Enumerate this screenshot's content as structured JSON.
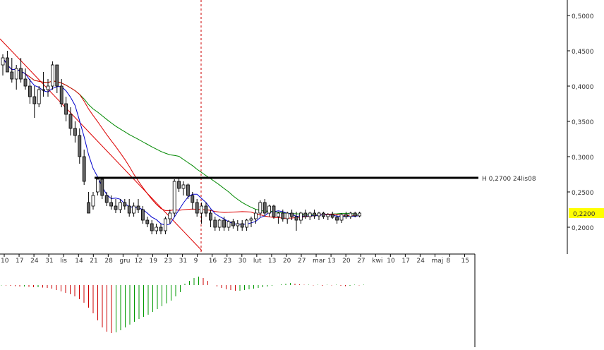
{
  "chart_data": {
    "type": "candlestick",
    "price_axis": {
      "ticks": [
        {
          "value": 0.5,
          "label": "0,5000"
        },
        {
          "value": 0.45,
          "label": "0,4500"
        },
        {
          "value": 0.4,
          "label": "0,4000"
        },
        {
          "value": 0.35,
          "label": "0,3500"
        },
        {
          "value": 0.3,
          "label": "0,3000"
        },
        {
          "value": 0.25,
          "label": "0,2500"
        },
        {
          "value": 0.2,
          "label": "0,2000"
        }
      ],
      "current_price": {
        "value": 0.22,
        "label": "0,2200",
        "color": "#ffff00"
      },
      "range": [
        0.17,
        0.52
      ]
    },
    "date_axis": {
      "labels": [
        "10",
        "17",
        "24",
        "31",
        "lis",
        "14",
        "21",
        "28",
        "gru",
        "12",
        "19",
        "23",
        "31",
        "9",
        "16",
        "23",
        "30",
        "lut",
        "13",
        "20",
        "27",
        "mar",
        "13",
        "20",
        "27",
        "kwi",
        "10",
        "17",
        "24",
        "maj",
        "8",
        "15"
      ]
    },
    "high_line": {
      "value": 0.27,
      "label": "H 0,2700 24lis08",
      "color": "#000000"
    },
    "candles": [
      [
        0.43,
        0.445,
        0.415,
        0.44
      ],
      [
        0.44,
        0.45,
        0.42,
        0.42
      ],
      [
        0.42,
        0.44,
        0.405,
        0.41
      ],
      [
        0.41,
        0.43,
        0.395,
        0.425
      ],
      [
        0.425,
        0.44,
        0.405,
        0.41
      ],
      [
        0.41,
        0.425,
        0.395,
        0.4
      ],
      [
        0.4,
        0.41,
        0.375,
        0.385
      ],
      [
        0.385,
        0.4,
        0.355,
        0.375
      ],
      [
        0.375,
        0.4,
        0.37,
        0.395
      ],
      [
        0.395,
        0.42,
        0.385,
        0.395
      ],
      [
        0.395,
        0.41,
        0.385,
        0.4
      ],
      [
        0.4,
        0.435,
        0.395,
        0.43
      ],
      [
        0.43,
        0.43,
        0.39,
        0.4
      ],
      [
        0.4,
        0.41,
        0.37,
        0.375
      ],
      [
        0.375,
        0.385,
        0.35,
        0.36
      ],
      [
        0.36,
        0.37,
        0.33,
        0.34
      ],
      [
        0.34,
        0.35,
        0.32,
        0.33
      ],
      [
        0.33,
        0.34,
        0.29,
        0.3
      ],
      [
        0.3,
        0.31,
        0.26,
        0.265
      ],
      [
        0.235,
        0.25,
        0.22,
        0.22
      ],
      [
        0.23,
        0.25,
        0.225,
        0.245
      ],
      [
        0.25,
        0.27,
        0.245,
        0.268
      ],
      [
        0.268,
        0.27,
        0.24,
        0.245
      ],
      [
        0.245,
        0.25,
        0.23,
        0.235
      ],
      [
        0.235,
        0.245,
        0.225,
        0.23
      ],
      [
        0.23,
        0.24,
        0.22,
        0.225
      ],
      [
        0.225,
        0.24,
        0.22,
        0.235
      ],
      [
        0.235,
        0.24,
        0.225,
        0.23
      ],
      [
        0.23,
        0.24,
        0.215,
        0.22
      ],
      [
        0.22,
        0.235,
        0.215,
        0.23
      ],
      [
        0.23,
        0.24,
        0.22,
        0.225
      ],
      [
        0.225,
        0.23,
        0.205,
        0.21
      ],
      [
        0.21,
        0.215,
        0.2,
        0.205
      ],
      [
        0.205,
        0.21,
        0.19,
        0.195
      ],
      [
        0.195,
        0.205,
        0.19,
        0.2
      ],
      [
        0.2,
        0.205,
        0.19,
        0.195
      ],
      [
        0.195,
        0.215,
        0.19,
        0.212
      ],
      [
        0.212,
        0.225,
        0.205,
        0.22
      ],
      [
        0.22,
        0.268,
        0.215,
        0.265
      ],
      [
        0.265,
        0.27,
        0.25,
        0.255
      ],
      [
        0.255,
        0.265,
        0.245,
        0.26
      ],
      [
        0.26,
        0.262,
        0.24,
        0.245
      ],
      [
        0.245,
        0.25,
        0.225,
        0.235
      ],
      [
        0.235,
        0.24,
        0.215,
        0.22
      ],
      [
        0.22,
        0.235,
        0.205,
        0.23
      ],
      [
        0.23,
        0.235,
        0.215,
        0.22
      ],
      [
        0.22,
        0.225,
        0.2,
        0.21
      ],
      [
        0.21,
        0.215,
        0.195,
        0.2
      ],
      [
        0.2,
        0.212,
        0.195,
        0.21
      ],
      [
        0.21,
        0.215,
        0.195,
        0.2
      ],
      [
        0.2,
        0.21,
        0.195,
        0.208
      ],
      [
        0.208,
        0.212,
        0.198,
        0.202
      ],
      [
        0.202,
        0.21,
        0.195,
        0.205
      ],
      [
        0.205,
        0.21,
        0.195,
        0.2
      ],
      [
        0.2,
        0.212,
        0.195,
        0.21
      ],
      [
        0.21,
        0.215,
        0.2,
        0.212
      ],
      [
        0.212,
        0.225,
        0.205,
        0.22
      ],
      [
        0.22,
        0.238,
        0.215,
        0.235
      ],
      [
        0.235,
        0.24,
        0.215,
        0.22
      ],
      [
        0.22,
        0.232,
        0.215,
        0.23
      ],
      [
        0.23,
        0.232,
        0.212,
        0.215
      ],
      [
        0.215,
        0.222,
        0.205,
        0.22
      ],
      [
        0.22,
        0.225,
        0.208,
        0.212
      ],
      [
        0.212,
        0.222,
        0.205,
        0.22
      ],
      [
        0.22,
        0.225,
        0.21,
        0.215
      ],
      [
        0.215,
        0.222,
        0.195,
        0.21
      ],
      [
        0.21,
        0.222,
        0.205,
        0.22
      ],
      [
        0.22,
        0.225,
        0.212,
        0.215
      ],
      [
        0.215,
        0.222,
        0.21,
        0.22
      ],
      [
        0.22,
        0.225,
        0.212,
        0.216
      ],
      [
        0.216,
        0.222,
        0.21,
        0.22
      ],
      [
        0.22,
        0.222,
        0.212,
        0.215
      ],
      [
        0.215,
        0.22,
        0.21,
        0.218
      ],
      [
        0.218,
        0.222,
        0.212,
        0.214
      ],
      [
        0.214,
        0.218,
        0.205,
        0.21
      ],
      [
        0.21,
        0.22,
        0.206,
        0.218
      ],
      [
        0.218,
        0.222,
        0.212,
        0.215
      ],
      [
        0.215,
        0.222,
        0.212,
        0.22
      ],
      [
        0.22,
        0.222,
        0.214,
        0.216
      ],
      [
        0.216,
        0.222,
        0.214,
        0.22
      ]
    ],
    "macd_histogram": [
      -0.5,
      -0.8,
      -1,
      -1.5,
      -2,
      -2,
      -2.5,
      -3,
      -3,
      -3.5,
      -4,
      -5,
      -7,
      -9,
      -11,
      -13,
      -16,
      -20,
      -25,
      -32,
      -40,
      -50,
      -60,
      -66,
      -68,
      -67,
      -64,
      -60,
      -56,
      -52,
      -48,
      -45,
      -42,
      -38,
      -34,
      -30,
      -26,
      -22,
      -16,
      -10,
      2,
      6,
      10,
      12,
      10,
      6,
      0,
      -2,
      -4,
      -6,
      -7,
      -8,
      -8,
      -7,
      -6,
      -5,
      -4,
      -3,
      -2,
      -1,
      0,
      1,
      2,
      3,
      2,
      1,
      0.5,
      0.5,
      -0.5,
      0.5,
      -1,
      0.5,
      -0.5,
      0.5,
      -1,
      -1.5,
      -1,
      0.5,
      -0.5,
      0.5
    ],
    "indicators": {
      "sma_fast_color": "#0000cc",
      "sma_mid_color": "#dd0000",
      "sma_slow_color": "#008800",
      "trendline_color": "#dd0000",
      "vline_color": "#cc0000"
    }
  }
}
